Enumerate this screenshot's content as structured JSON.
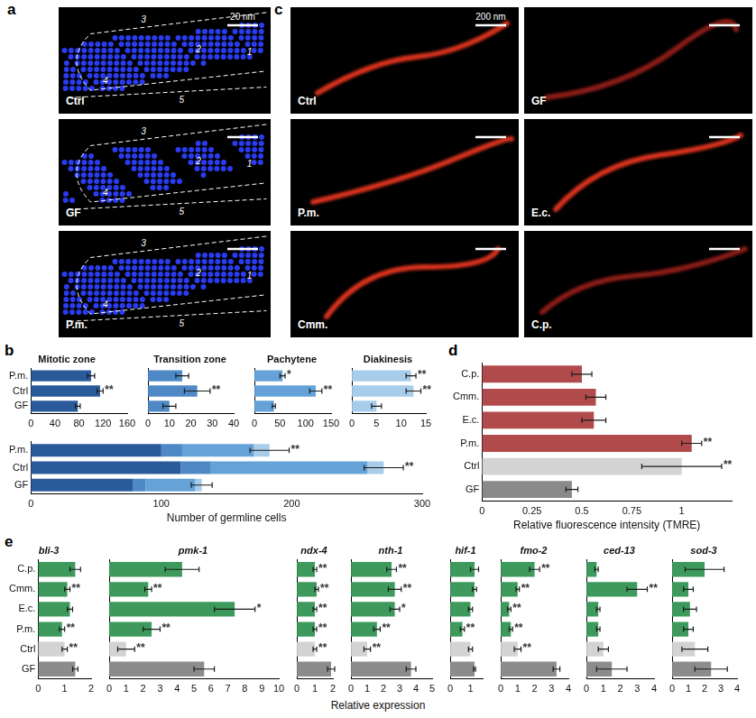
{
  "image_panels": [
    {
      "panel": "a",
      "scale_bar": "20 nm",
      "zones": [
        "1",
        "2",
        "3",
        "4",
        "5"
      ],
      "images": [
        "Ctrl",
        "GF",
        "P.m."
      ]
    },
    {
      "panel": "c",
      "scale_bar": "200 nm",
      "images": [
        "Ctrl",
        "GF",
        "P.m.",
        "E.c.",
        "Cmm.",
        "C.p."
      ]
    }
  ],
  "shared_axis_titles": [
    {
      "panel": "e",
      "text": "Relative expression"
    }
  ],
  "chart_data": [
    {
      "panel": "b",
      "type": "bar",
      "orientation": "horizontal",
      "title": "Mitotic zone",
      "categories": [
        "P.m.",
        "Ctrl",
        "GF"
      ],
      "values": [
        100,
        115,
        78
      ],
      "errors": [
        6,
        5,
        4
      ],
      "annotations": [
        null,
        "**",
        null
      ],
      "color": "#2b5a9b",
      "xlim": [
        0,
        160
      ],
      "xticks": [
        0,
        40,
        80,
        120,
        160
      ],
      "grid": false
    },
    {
      "panel": "b",
      "type": "bar",
      "orientation": "horizontal",
      "title": "Transition zone",
      "categories": [
        "P.m.",
        "Ctrl",
        "GF"
      ],
      "values": [
        16,
        23,
        10
      ],
      "errors": [
        3,
        6,
        3
      ],
      "annotations": [
        null,
        "**",
        null
      ],
      "color": "#4f88c6",
      "xlim": [
        0,
        40
      ],
      "xticks": [
        0,
        10,
        20,
        30,
        40
      ],
      "grid": false,
      "tick_labels": "x"
    },
    {
      "panel": "b",
      "type": "bar",
      "orientation": "horizontal",
      "title": "Pachytene",
      "categories": [
        "P.m.",
        "Ctrl",
        "GF"
      ],
      "values": [
        55,
        120,
        38
      ],
      "errors": [
        5,
        12,
        3
      ],
      "annotations": [
        "*",
        "**",
        null
      ],
      "color": "#64a2d8",
      "xlim": [
        0,
        150
      ],
      "xticks": [
        0,
        50,
        100,
        150
      ],
      "grid": false,
      "tick_labels": "x"
    },
    {
      "panel": "b",
      "type": "bar",
      "orientation": "horizontal",
      "title": "Diakinesis",
      "categories": [
        "P.m.",
        "Ctrl",
        "GF"
      ],
      "values": [
        12,
        12.5,
        5
      ],
      "errors": [
        1,
        1.5,
        1
      ],
      "annotations": [
        "**",
        "**",
        null
      ],
      "color": "#a8cdea",
      "xlim": [
        0,
        15
      ],
      "xticks": [
        0,
        5,
        10,
        15
      ],
      "grid": false,
      "tick_labels": "x"
    },
    {
      "panel": "b",
      "type": "bar",
      "orientation": "horizontal",
      "stacked": true,
      "categories": [
        "P.m.",
        "Ctrl",
        "GF"
      ],
      "series": [
        {
          "color": "#2b5a9b",
          "values": [
            100,
            115,
            78
          ]
        },
        {
          "color": "#4f88c6",
          "values": [
            16,
            23,
            10
          ]
        },
        {
          "color": "#64a2d8",
          "values": [
            55,
            120,
            38
          ]
        },
        {
          "color": "#a8cdea",
          "values": [
            12,
            12.5,
            5
          ]
        }
      ],
      "total_errors": [
        15,
        15,
        8
      ],
      "annotations": [
        "**",
        "**",
        null
      ],
      "xlabel": "Number of germline cells",
      "xlim": [
        0,
        300
      ],
      "xticks": [
        0,
        100,
        200,
        300
      ],
      "grid": false
    },
    {
      "panel": "d",
      "type": "bar",
      "orientation": "horizontal",
      "categories": [
        "C.p.",
        "Cmm.",
        "E.c.",
        "P.m.",
        "Ctrl",
        "GF"
      ],
      "values": [
        0.5,
        0.57,
        0.56,
        1.05,
        1.0,
        0.45
      ],
      "errors": [
        0.05,
        0.05,
        0.06,
        0.05,
        0.2,
        0.03
      ],
      "annotations": [
        null,
        null,
        null,
        "**",
        "**",
        null
      ],
      "colors": [
        "#b14b4b",
        "#b14b4b",
        "#b14b4b",
        "#b14b4b",
        "#d3d3d3",
        "#8a8a8a"
      ],
      "xlabel": "Relative fluorescence intensity (TMRE)",
      "xlim": [
        0,
        1.25
      ],
      "xticks": [
        0,
        0.25,
        0.5,
        0.75,
        1
      ],
      "grid": false
    },
    {
      "panel": "e",
      "type": "bar",
      "orientation": "horizontal",
      "title": "bli-3",
      "categories": [
        "C.p.",
        "Cmm.",
        "E.c.",
        "P.m.",
        "Ctrl",
        "GF"
      ],
      "values": [
        1.4,
        1.1,
        1.2,
        0.9,
        1.0,
        1.4
      ],
      "errors": [
        0.2,
        0.1,
        0.1,
        0.1,
        0.1,
        0.1
      ],
      "annotations": [
        null,
        "**",
        null,
        "**",
        "**",
        null
      ],
      "colors": [
        "#3d9a5c",
        "#3d9a5c",
        "#3d9a5c",
        "#3d9a5c",
        "#d3d3d3",
        "#8c8c8c"
      ],
      "xlim": [
        0,
        2
      ],
      "xticks": [
        0,
        1,
        2
      ],
      "grid": false
    },
    {
      "panel": "e",
      "type": "bar",
      "orientation": "horizontal",
      "title": "pmk-1",
      "categories": [
        "C.p.",
        "Cmm.",
        "E.c.",
        "P.m.",
        "Ctrl",
        "GF"
      ],
      "values": [
        4.3,
        2.3,
        7.4,
        2.5,
        1.0,
        5.6
      ],
      "errors": [
        1.0,
        0.2,
        1.2,
        0.5,
        0.5,
        0.6
      ],
      "annotations": [
        null,
        "**",
        "*",
        "**",
        "**",
        null
      ],
      "colors": [
        "#3d9a5c",
        "#3d9a5c",
        "#3d9a5c",
        "#3d9a5c",
        "#d3d3d3",
        "#8c8c8c"
      ],
      "xlim": [
        0,
        10
      ],
      "xticks": [
        0,
        1,
        2,
        3,
        4,
        5,
        6,
        7,
        8,
        9,
        10
      ],
      "grid": false,
      "tick_labels": "x"
    },
    {
      "panel": "e",
      "type": "bar",
      "orientation": "horizontal",
      "title": "ndx-4",
      "categories": [
        "C.p.",
        "Cmm.",
        "E.c.",
        "P.m.",
        "Ctrl",
        "GF"
      ],
      "values": [
        1.0,
        1.1,
        1.0,
        1.0,
        1.0,
        1.9
      ],
      "errors": [
        0.1,
        0.1,
        0.1,
        0.1,
        0.1,
        0.2
      ],
      "annotations": [
        "**",
        "**",
        "**",
        "**",
        "**",
        null
      ],
      "colors": [
        "#3d9a5c",
        "#3d9a5c",
        "#3d9a5c",
        "#3d9a5c",
        "#d3d3d3",
        "#8c8c8c"
      ],
      "xlim": [
        0,
        2
      ],
      "xticks": [
        0,
        1,
        2
      ],
      "grid": false,
      "tick_labels": "x"
    },
    {
      "panel": "e",
      "type": "bar",
      "orientation": "horizontal",
      "title": "nth-1",
      "categories": [
        "C.p.",
        "Cmm.",
        "E.c.",
        "P.m.",
        "Ctrl",
        "GF"
      ],
      "values": [
        2.5,
        2.7,
        2.7,
        1.6,
        1.0,
        3.7
      ],
      "errors": [
        0.3,
        0.4,
        0.3,
        0.2,
        0.2,
        0.3
      ],
      "annotations": [
        "**",
        "**",
        "*",
        "**",
        "**",
        null
      ],
      "colors": [
        "#3d9a5c",
        "#3d9a5c",
        "#3d9a5c",
        "#3d9a5c",
        "#d3d3d3",
        "#8c8c8c"
      ],
      "xlim": [
        0,
        5
      ],
      "xticks": [
        0,
        1,
        2,
        3,
        4,
        5
      ],
      "grid": false,
      "tick_labels": "x"
    },
    {
      "panel": "e",
      "type": "bar",
      "orientation": "horizontal",
      "title": "hif-1",
      "categories": [
        "C.p.",
        "Cmm.",
        "E.c.",
        "P.m.",
        "Ctrl",
        "GF"
      ],
      "values": [
        1.2,
        1.2,
        1.0,
        0.6,
        1.0,
        1.2
      ],
      "errors": [
        0.2,
        0.1,
        0.1,
        0.1,
        0.1,
        0.05
      ],
      "annotations": [
        null,
        null,
        null,
        "**",
        null,
        null
      ],
      "colors": [
        "#3d9a5c",
        "#3d9a5c",
        "#3d9a5c",
        "#3d9a5c",
        "#d3d3d3",
        "#8c8c8c"
      ],
      "xlim": [
        0,
        1.6
      ],
      "xticks": [
        0,
        1
      ],
      "grid": false,
      "tick_labels": "x"
    },
    {
      "panel": "e",
      "type": "bar",
      "orientation": "horizontal",
      "title": "fmo-2",
      "categories": [
        "C.p.",
        "Cmm.",
        "E.c.",
        "P.m.",
        "Ctrl",
        "GF"
      ],
      "values": [
        2.0,
        1.0,
        0.5,
        0.6,
        1.0,
        3.3
      ],
      "errors": [
        0.3,
        0.1,
        0.1,
        0.1,
        0.2,
        0.2
      ],
      "annotations": [
        "**",
        "**",
        "**",
        "**",
        "**",
        null
      ],
      "colors": [
        "#3d9a5c",
        "#3d9a5c",
        "#3d9a5c",
        "#3d9a5c",
        "#d3d3d3",
        "#8c8c8c"
      ],
      "xlim": [
        0,
        4
      ],
      "xticks": [
        0,
        1,
        2,
        3,
        4
      ],
      "grid": false,
      "tick_labels": "x"
    },
    {
      "panel": "e",
      "type": "bar",
      "orientation": "horizontal",
      "title": "ced-13",
      "categories": [
        "C.p.",
        "Cmm.",
        "E.c.",
        "P.m.",
        "Ctrl",
        "GF"
      ],
      "values": [
        0.6,
        3.0,
        0.7,
        0.7,
        1.0,
        1.5
      ],
      "errors": [
        0.1,
        0.6,
        0.1,
        0.1,
        0.3,
        0.9
      ],
      "annotations": [
        null,
        "**",
        null,
        null,
        null,
        null
      ],
      "colors": [
        "#3d9a5c",
        "#3d9a5c",
        "#3d9a5c",
        "#3d9a5c",
        "#d3d3d3",
        "#8c8c8c"
      ],
      "xlim": [
        0,
        4
      ],
      "xticks": [
        0,
        1,
        2,
        3,
        4
      ],
      "grid": false,
      "tick_labels": "x"
    },
    {
      "panel": "e",
      "type": "bar",
      "orientation": "horizontal",
      "title": "sod-3",
      "categories": [
        "C.p.",
        "Cmm.",
        "E.c.",
        "P.m.",
        "Ctrl",
        "GF"
      ],
      "values": [
        2.0,
        1.0,
        1.1,
        1.0,
        1.4,
        2.4
      ],
      "errors": [
        1.2,
        0.3,
        0.4,
        0.3,
        0.8,
        1.0
      ],
      "colors": [
        "#3d9a5c",
        "#3d9a5c",
        "#3d9a5c",
        "#3d9a5c",
        "#d3d3d3",
        "#8c8c8c"
      ],
      "xlim": [
        0,
        4
      ],
      "xticks": [
        0,
        1,
        2,
        3,
        4
      ],
      "grid": false,
      "tick_labels": "x"
    }
  ]
}
